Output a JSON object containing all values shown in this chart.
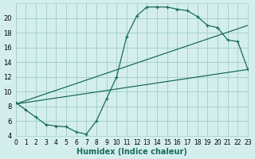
{
  "title": "",
  "xlabel": "Humidex (Indice chaleur)",
  "bg_color": "#d4eeee",
  "grid_color": "#a0cccc",
  "line_color": "#1a6b5a",
  "xmin": 0,
  "xmax": 23,
  "ymin": 4,
  "ymax": 22,
  "yticks": [
    4,
    6,
    8,
    10,
    12,
    14,
    16,
    18,
    20
  ],
  "xticks": [
    0,
    1,
    2,
    3,
    4,
    5,
    6,
    7,
    8,
    9,
    10,
    11,
    12,
    13,
    14,
    15,
    16,
    17,
    18,
    19,
    20,
    21,
    22,
    23
  ],
  "curve1_x": [
    0,
    1,
    2,
    3,
    4,
    5,
    6,
    7,
    8,
    9,
    10,
    11,
    12,
    13,
    14,
    15,
    16,
    17,
    18,
    19,
    20,
    21,
    22,
    23
  ],
  "curve1_y": [
    8.5,
    7.5,
    6.5,
    5.5,
    5.3,
    5.2,
    4.5,
    4.2,
    6.0,
    9.0,
    12.0,
    17.5,
    20.3,
    21.5,
    21.5,
    21.5,
    21.2,
    21.0,
    20.2,
    19.0,
    18.7,
    17.0,
    16.8,
    13.0
  ],
  "line2_x": [
    0,
    23
  ],
  "line2_y": [
    8.3,
    13.0
  ],
  "line3_x": [
    0,
    23
  ],
  "line3_y": [
    8.3,
    19.0
  ],
  "xlabel_fontsize": 7,
  "xlabel_color": "#1a6b5a",
  "tick_fontsize_x": 5.5,
  "tick_fontsize_y": 6.0
}
